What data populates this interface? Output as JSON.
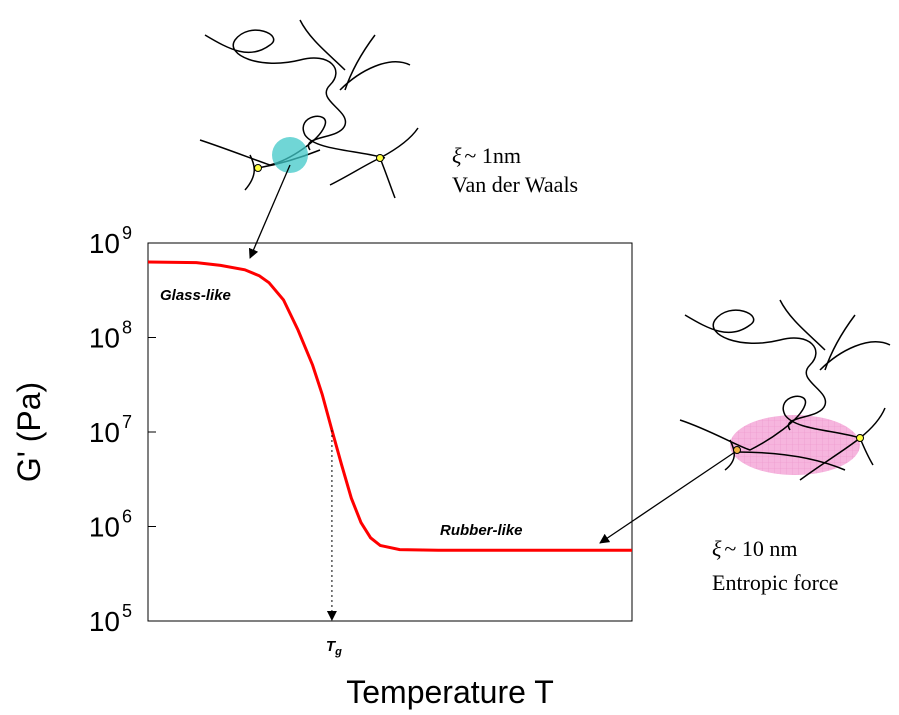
{
  "chart_data": {
    "type": "line",
    "y_label": "G' (Pa)",
    "x_label": "Temperature T",
    "log_y": true,
    "xlim": [
      0,
      100
    ],
    "ylim": [
      100000,
      1000000000
    ],
    "yticks": [
      {
        "value": 100000,
        "label": "10",
        "exponent": "5"
      },
      {
        "value": 1000000,
        "label": "10",
        "exponent": "6"
      },
      {
        "value": 10000000,
        "label": "10",
        "exponent": "7"
      },
      {
        "value": 100000000,
        "label": "10",
        "exponent": "8"
      },
      {
        "value": 1000000000,
        "label": "10",
        "exponent": "9"
      }
    ],
    "x": [
      0,
      10,
      15,
      20,
      23,
      25,
      28,
      31,
      34,
      36,
      38,
      40,
      42,
      44,
      46,
      48,
      52,
      60,
      100
    ],
    "series": [
      {
        "color": "#ff0000",
        "values": [
          630000000,
          620000000,
          580000000,
          520000000,
          450000000,
          380000000,
          250000000,
          120000000,
          51000000,
          25000000,
          10500000,
          4500000,
          2000000,
          1100000,
          760000,
          630000,
          570000,
          560000,
          560000
        ]
      }
    ],
    "tg": {
      "label": "T",
      "subscript": "g",
      "x": 38
    },
    "regions": {
      "glass": "Glass-like",
      "rubber": "Rubber-like"
    },
    "scales": {
      "glass": {
        "symbol": "ξ",
        "size": "~ 1nm",
        "force": "Van der Waals"
      },
      "rubber": {
        "symbol": "ξ",
        "size": "~ 10 nm",
        "force": "Entropic force"
      }
    }
  }
}
